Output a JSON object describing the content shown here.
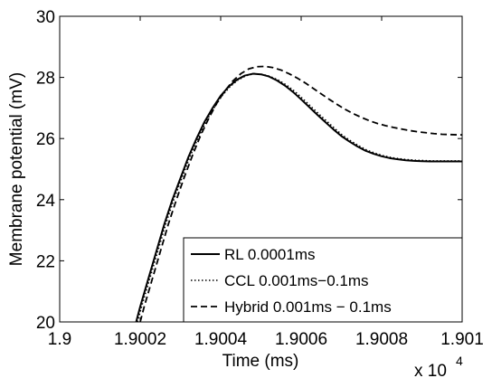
{
  "chart_data": {
    "type": "line",
    "xlabel": "Time (ms)",
    "ylabel": "Membrane potential (mV)",
    "xlim": [
      1.9,
      1.901
    ],
    "ylim": [
      20,
      30
    ],
    "x_multiplier": "x 10",
    "x_multiplier_exponent": "4",
    "x_ticks": [
      {
        "value": 1.9,
        "label": "1.9"
      },
      {
        "value": 1.9002,
        "label": "1.9002"
      },
      {
        "value": 1.9004,
        "label": "1.9004"
      },
      {
        "value": 1.9006,
        "label": "1.9006"
      },
      {
        "value": 1.9008,
        "label": "1.9008"
      },
      {
        "value": 1.901,
        "label": "1.901"
      }
    ],
    "y_ticks": [
      {
        "value": 20,
        "label": "20"
      },
      {
        "value": 22,
        "label": "22"
      },
      {
        "value": 24,
        "label": "24"
      },
      {
        "value": 26,
        "label": "26"
      },
      {
        "value": 28,
        "label": "28"
      },
      {
        "value": 30,
        "label": "30"
      }
    ],
    "legend_position": "bottom-right",
    "series": [
      {
        "name": "RL 0.0001ms",
        "style": "solid",
        "color": "#000000",
        "x": [
          1.90019,
          1.9002,
          1.90022,
          1.90024,
          1.90026,
          1.90028,
          1.9003,
          1.90032,
          1.90034,
          1.90036,
          1.90038,
          1.9004,
          1.90042,
          1.90044,
          1.90046,
          1.90048,
          1.9005,
          1.90052,
          1.90054,
          1.90056,
          1.90058,
          1.9006,
          1.90062,
          1.90064,
          1.90066,
          1.90068,
          1.9007,
          1.90072,
          1.90074,
          1.90076,
          1.90078,
          1.9008,
          1.90082,
          1.90084,
          1.90086,
          1.90088,
          1.9009,
          1.90092,
          1.90094,
          1.90096,
          1.90098,
          1.901
        ],
        "y": [
          20.0,
          20.5,
          21.4,
          22.3,
          23.2,
          24.0,
          24.7,
          25.4,
          26.0,
          26.55,
          27.0,
          27.4,
          27.7,
          27.92,
          28.06,
          28.12,
          28.1,
          28.03,
          27.9,
          27.73,
          27.52,
          27.28,
          27.03,
          26.78,
          26.54,
          26.3,
          26.08,
          25.9,
          25.74,
          25.6,
          25.5,
          25.42,
          25.36,
          25.32,
          25.29,
          25.27,
          25.26,
          25.25,
          25.25,
          25.25,
          25.25,
          25.25
        ]
      },
      {
        "name": "CCL 0.001ms−0.1ms",
        "style": "dotted",
        "color": "#000000",
        "x": [
          1.90019,
          1.9002,
          1.90022,
          1.90024,
          1.90026,
          1.90028,
          1.9003,
          1.90032,
          1.90034,
          1.90036,
          1.90038,
          1.9004,
          1.90042,
          1.90044,
          1.90046,
          1.90048,
          1.9005,
          1.90052,
          1.90054,
          1.90056,
          1.90058,
          1.9006,
          1.90062,
          1.90064,
          1.90066,
          1.90068,
          1.9007,
          1.90072,
          1.90074,
          1.90076,
          1.90078,
          1.9008,
          1.90082,
          1.90084,
          1.90086,
          1.90088,
          1.9009,
          1.90092,
          1.90094,
          1.90096,
          1.90098,
          1.901
        ],
        "y": [
          20.0,
          20.5,
          21.4,
          22.3,
          23.2,
          24.0,
          24.7,
          25.4,
          26.0,
          26.55,
          27.0,
          27.4,
          27.7,
          27.92,
          28.06,
          28.12,
          28.1,
          28.03,
          27.91,
          27.75,
          27.55,
          27.31,
          27.06,
          26.81,
          26.57,
          26.33,
          26.1,
          25.92,
          25.76,
          25.62,
          25.52,
          25.44,
          25.38,
          25.34,
          25.31,
          25.29,
          25.28,
          25.27,
          25.27,
          25.27,
          25.27,
          25.27
        ]
      },
      {
        "name": "Hybrid 0.001ms − 0.1ms",
        "style": "dashed",
        "color": "#000000",
        "x": [
          1.9002,
          1.90021,
          1.90023,
          1.90025,
          1.90027,
          1.90029,
          1.90031,
          1.90033,
          1.90035,
          1.90037,
          1.90039,
          1.90041,
          1.90043,
          1.90045,
          1.90047,
          1.90049,
          1.90051,
          1.90053,
          1.90055,
          1.90057,
          1.90059,
          1.90061,
          1.90063,
          1.90065,
          1.90067,
          1.90069,
          1.90071,
          1.90073,
          1.90075,
          1.90077,
          1.90079,
          1.90081,
          1.90083,
          1.90085,
          1.90087,
          1.90089,
          1.90091,
          1.90093,
          1.90095,
          1.90097,
          1.90099,
          1.901
        ],
        "y": [
          20.0,
          20.5,
          21.4,
          22.3,
          23.2,
          24.0,
          24.75,
          25.45,
          26.1,
          26.65,
          27.15,
          27.55,
          27.88,
          28.12,
          28.28,
          28.35,
          28.36,
          28.32,
          28.24,
          28.12,
          27.98,
          27.82,
          27.64,
          27.46,
          27.28,
          27.11,
          26.95,
          26.81,
          26.69,
          26.58,
          26.49,
          26.42,
          26.36,
          26.31,
          26.26,
          26.22,
          26.19,
          26.16,
          26.14,
          26.13,
          26.12,
          26.12
        ]
      }
    ]
  }
}
